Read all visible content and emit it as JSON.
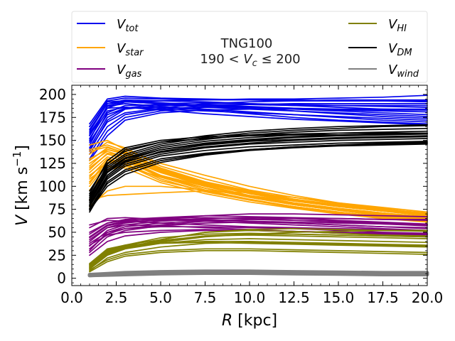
{
  "chart_data": {
    "type": "line",
    "title": "TNG100",
    "subtitle": "190 < V_c ≤ 200",
    "xlabel": "R [kpc]",
    "ylabel": "V [km s^-1]",
    "xlim": [
      0,
      20
    ],
    "ylim": [
      -8,
      210
    ],
    "xticks": [
      "0.0",
      "2.5",
      "5.0",
      "7.5",
      "10.0",
      "12.5",
      "15.0",
      "17.5",
      "20.0"
    ],
    "yticks": [
      "0",
      "25",
      "50",
      "75",
      "100",
      "125",
      "150",
      "175",
      "200"
    ],
    "x": [
      1,
      2,
      3,
      5,
      7.5,
      10,
      12.5,
      15,
      17.5,
      20
    ],
    "legend_position": "top (outside, above axes)",
    "series": [
      {
        "name": "V_tot",
        "color": "#0000ee",
        "width": 1.7,
        "lines": [
          [
            168,
            195,
            198,
            196,
            195,
            194,
            193,
            193,
            193,
            192
          ],
          [
            165,
            193,
            196,
            195,
            194,
            194,
            194,
            193,
            193,
            193
          ],
          [
            160,
            190,
            194,
            193,
            192,
            190,
            189,
            188,
            187,
            186
          ],
          [
            155,
            185,
            192,
            193,
            194,
            195,
            195,
            196,
            197,
            199
          ],
          [
            150,
            188,
            192,
            190,
            188,
            186,
            184,
            182,
            180,
            178
          ],
          [
            145,
            180,
            188,
            189,
            189,
            189,
            188,
            188,
            188,
            188
          ],
          [
            162,
            190,
            192,
            190,
            186,
            184,
            182,
            180,
            178,
            176
          ],
          [
            140,
            170,
            180,
            185,
            190,
            192,
            193,
            194,
            194,
            194
          ],
          [
            135,
            165,
            178,
            184,
            187,
            189,
            190,
            190,
            190,
            190
          ],
          [
            158,
            185,
            186,
            184,
            182,
            180,
            178,
            176,
            174,
            172
          ],
          [
            152,
            182,
            186,
            183,
            179,
            176,
            173,
            171,
            169,
            167
          ],
          [
            148,
            178,
            185,
            186,
            184,
            181,
            178,
            175,
            172,
            170
          ],
          [
            142,
            175,
            185,
            190,
            191,
            190,
            188,
            186,
            184,
            183
          ],
          [
            130,
            160,
            175,
            182,
            186,
            186,
            185,
            184,
            183,
            183
          ],
          [
            138,
            172,
            184,
            188,
            188,
            187,
            185,
            183,
            182,
            181
          ],
          [
            128,
            155,
            172,
            180,
            183,
            184,
            184,
            184,
            184,
            184
          ],
          [
            156,
            187,
            190,
            187,
            183,
            179,
            175,
            172,
            170,
            168
          ],
          [
            165,
            192,
            193,
            191,
            188,
            185,
            182,
            179,
            176,
            174
          ]
        ]
      },
      {
        "name": "V_star",
        "color": "#ffa500",
        "width": 1.7,
        "lines": [
          [
            145,
            150,
            140,
            125,
            112,
            100,
            90,
            82,
            76,
            70
          ],
          [
            140,
            145,
            138,
            120,
            105,
            95,
            86,
            79,
            74,
            69
          ],
          [
            130,
            140,
            135,
            118,
            102,
            92,
            84,
            78,
            73,
            68
          ],
          [
            125,
            138,
            132,
            115,
            100,
            90,
            82,
            76,
            71,
            66
          ],
          [
            120,
            135,
            130,
            112,
            98,
            88,
            80,
            74,
            69,
            65
          ],
          [
            115,
            132,
            128,
            110,
            96,
            86,
            78,
            72,
            67,
            63
          ],
          [
            110,
            130,
            125,
            108,
            94,
            85,
            77,
            71,
            66,
            62
          ],
          [
            105,
            128,
            128,
            112,
            100,
            90,
            82,
            76,
            71,
            67
          ],
          [
            100,
            125,
            130,
            115,
            102,
            93,
            85,
            79,
            74,
            70
          ],
          [
            85,
            90,
            91,
            93,
            95,
            93,
            88,
            82,
            77,
            72
          ],
          [
            78,
            95,
            100,
            100,
            96,
            90,
            84,
            78,
            73,
            69
          ],
          [
            135,
            148,
            142,
            122,
            108,
            96,
            88,
            81,
            75,
            71
          ],
          [
            122,
            140,
            136,
            118,
            103,
            93,
            85,
            78,
            73,
            68
          ],
          [
            112,
            126,
            124,
            106,
            95,
            85,
            78,
            72,
            67,
            63
          ],
          [
            108,
            122,
            120,
            104,
            92,
            83,
            76,
            70,
            65,
            61
          ],
          [
            96,
            118,
            122,
            110,
            98,
            89,
            81,
            75,
            70,
            66
          ],
          [
            118,
            136,
            133,
            116,
            100,
            89,
            80,
            74,
            68,
            64
          ],
          [
            128,
            142,
            137,
            119,
            104,
            94,
            86,
            80,
            74,
            70
          ],
          [
            103,
            128,
            127,
            111,
            98,
            88,
            80,
            74,
            69,
            64
          ],
          [
            138,
            143,
            136,
            117,
            101,
            90,
            81,
            74,
            68,
            62
          ]
        ]
      },
      {
        "name": "V_gas",
        "color": "#800080",
        "width": 1.7,
        "lines": [
          [
            55,
            65,
            66,
            64,
            62,
            60,
            58,
            56,
            54,
            52
          ],
          [
            50,
            60,
            64,
            66,
            68,
            67,
            66,
            65,
            64,
            63
          ],
          [
            45,
            58,
            62,
            65,
            66,
            65,
            63,
            61,
            59,
            57
          ],
          [
            40,
            55,
            60,
            64,
            68,
            70,
            70,
            69,
            68,
            67
          ],
          [
            35,
            52,
            58,
            62,
            65,
            66,
            65,
            63,
            61,
            59
          ],
          [
            30,
            50,
            56,
            60,
            63,
            64,
            63,
            62,
            60,
            58
          ],
          [
            28,
            45,
            52,
            57,
            60,
            61,
            60,
            58,
            56,
            54
          ],
          [
            42,
            55,
            58,
            57,
            55,
            53,
            51,
            49,
            48,
            47
          ],
          [
            38,
            50,
            54,
            56,
            56,
            55,
            54,
            52,
            50,
            49
          ],
          [
            32,
            48,
            54,
            58,
            62,
            64,
            65,
            65,
            64,
            64
          ],
          [
            36,
            47,
            50,
            52,
            53,
            52,
            51,
            50,
            49,
            48
          ],
          [
            58,
            63,
            62,
            60,
            58,
            56,
            55,
            54,
            53,
            52
          ],
          [
            48,
            60,
            63,
            64,
            64,
            62,
            60,
            58,
            56,
            55
          ],
          [
            25,
            40,
            46,
            50,
            52,
            52,
            51,
            50,
            49,
            48
          ],
          [
            44,
            57,
            61,
            63,
            63,
            62,
            61,
            60,
            59,
            58
          ]
        ]
      },
      {
        "name": "V_HI",
        "color": "#808000",
        "width": 1.7,
        "lines": [
          [
            15,
            30,
            36,
            42,
            50,
            53,
            54,
            53,
            52,
            51
          ],
          [
            12,
            28,
            34,
            40,
            46,
            48,
            48,
            47,
            46,
            45
          ],
          [
            10,
            25,
            32,
            38,
            42,
            43,
            42,
            41,
            40,
            39
          ],
          [
            8,
            22,
            28,
            34,
            38,
            39,
            38,
            37,
            36,
            35
          ],
          [
            14,
            30,
            35,
            38,
            40,
            40,
            39,
            38,
            37,
            36
          ],
          [
            16,
            32,
            36,
            38,
            39,
            38,
            37,
            36,
            35,
            34
          ],
          [
            9,
            20,
            26,
            30,
            32,
            32,
            31,
            30,
            29,
            28
          ],
          [
            11,
            26,
            32,
            42,
            50,
            52,
            51,
            49,
            47,
            46
          ],
          [
            13,
            29,
            34,
            41,
            46,
            47,
            46,
            45,
            44,
            43
          ],
          [
            7,
            18,
            24,
            28,
            30,
            30,
            29,
            28,
            27,
            26
          ],
          [
            12,
            27,
            33,
            39,
            45,
            48,
            50,
            51,
            52,
            52
          ],
          [
            15,
            31,
            36,
            44,
            48,
            49,
            48,
            47,
            46,
            45
          ]
        ]
      },
      {
        "name": "V_DM",
        "color": "#000000",
        "width": 1.7,
        "lines": [
          [
            95,
            125,
            138,
            148,
            155,
            160,
            163,
            165,
            166,
            167
          ],
          [
            90,
            122,
            135,
            146,
            153,
            158,
            161,
            163,
            165,
            166
          ],
          [
            88,
            120,
            133,
            144,
            151,
            156,
            159,
            161,
            162,
            163
          ],
          [
            85,
            118,
            131,
            142,
            149,
            153,
            156,
            158,
            159,
            160
          ],
          [
            82,
            115,
            128,
            140,
            147,
            151,
            154,
            156,
            157,
            158
          ],
          [
            80,
            112,
            126,
            138,
            145,
            149,
            151,
            153,
            154,
            155
          ],
          [
            78,
            110,
            124,
            135,
            142,
            146,
            148,
            150,
            151,
            152
          ],
          [
            75,
            108,
            122,
            133,
            139,
            143,
            145,
            147,
            148,
            149
          ],
          [
            72,
            105,
            118,
            130,
            136,
            140,
            143,
            145,
            146,
            147
          ],
          [
            92,
            128,
            142,
            150,
            154,
            156,
            157,
            158,
            158,
            158
          ],
          [
            86,
            124,
            140,
            148,
            152,
            155,
            156,
            156,
            157,
            157
          ],
          [
            84,
            116,
            130,
            140,
            146,
            150,
            153,
            155,
            156,
            157
          ],
          [
            79,
            112,
            127,
            137,
            143,
            147,
            150,
            152,
            153,
            154
          ],
          [
            76,
            103,
            116,
            128,
            135,
            140,
            143,
            145,
            147,
            148
          ],
          [
            74,
            100,
            113,
            126,
            134,
            139,
            142,
            144,
            145,
            146
          ]
        ]
      },
      {
        "name": "V_wind",
        "color": "#808080",
        "width": 5,
        "lines": [
          [
            3,
            4,
            5,
            6,
            6.5,
            6.5,
            6,
            5.5,
            5,
            5
          ],
          [
            4,
            5,
            6,
            7,
            7.5,
            7.5,
            7,
            6.5,
            6,
            6
          ],
          [
            3,
            3.5,
            4,
            5,
            5.5,
            5.5,
            5,
            4.5,
            4,
            4
          ]
        ]
      }
    ]
  },
  "legend": {
    "items": [
      {
        "label": "V",
        "sub": "tot",
        "color": "#0000ee"
      },
      {
        "label": "V",
        "sub": "star",
        "color": "#ffa500"
      },
      {
        "label": "V",
        "sub": "gas",
        "color": "#800080"
      },
      {
        "label": "V",
        "sub": "HI",
        "color": "#808000"
      },
      {
        "label": "V",
        "sub": "DM",
        "color": "#000000"
      },
      {
        "label": "V",
        "sub": "wind",
        "color": "#808080"
      }
    ],
    "title_line1": "TNG100",
    "title_line2": "190 < V_c ≤ 200"
  }
}
